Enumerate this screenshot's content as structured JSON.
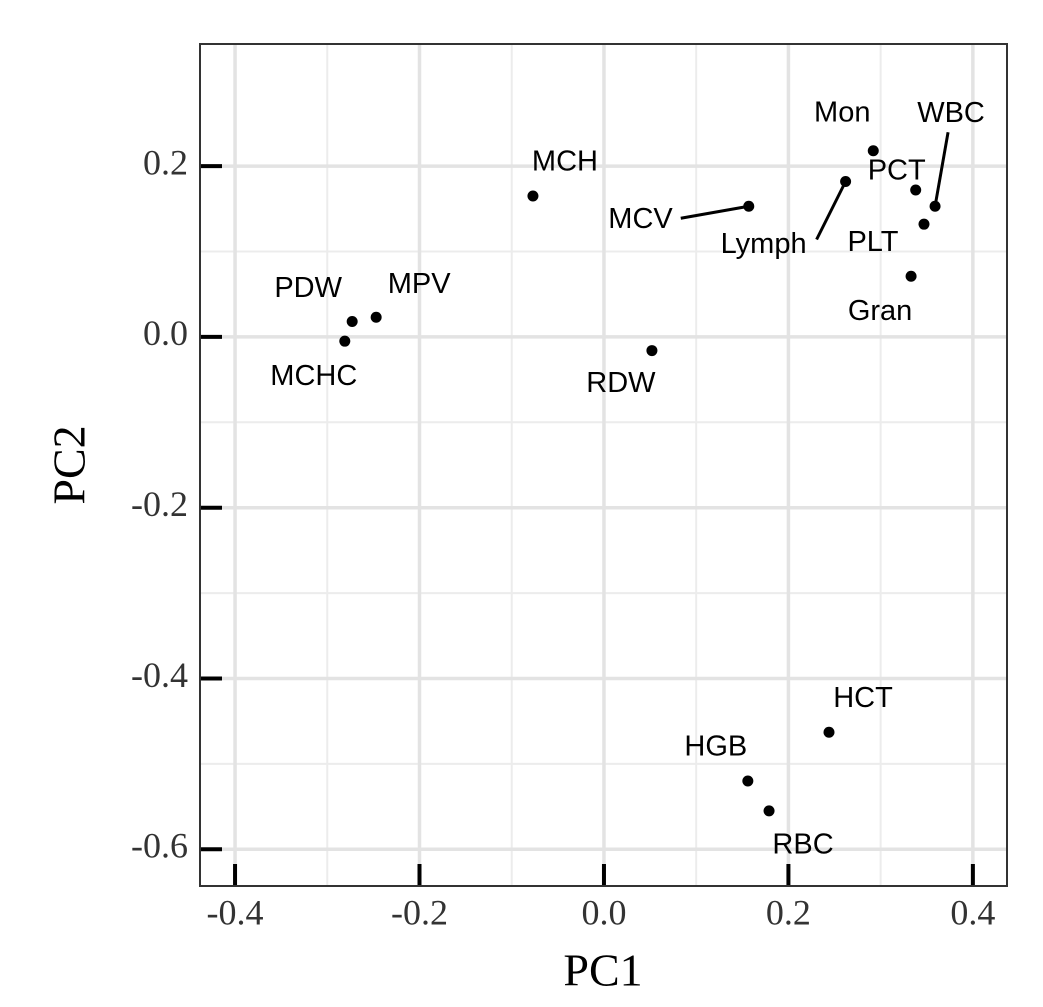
{
  "chart_data": {
    "type": "scatter",
    "x_label": "PC1",
    "y_label": "PC2",
    "labels": [
      "MCH",
      "MCV",
      "Mon",
      "Lymph",
      "PCT",
      "WBC",
      "PLT",
      "Gran",
      "PDW",
      "MPV",
      "MCHC",
      "RDW",
      "HCT",
      "HGB",
      "RBC"
    ],
    "x": [
      -0.077,
      0.157,
      0.292,
      0.262,
      0.338,
      0.359,
      0.347,
      0.333,
      -0.273,
      -0.247,
      -0.281,
      0.052,
      0.244,
      0.156,
      0.179
    ],
    "y": [
      0.165,
      0.153,
      0.218,
      0.182,
      0.172,
      0.153,
      0.132,
      0.071,
      0.018,
      0.023,
      -0.005,
      -0.016,
      -0.463,
      -0.52,
      -0.555
    ],
    "color": "#000000",
    "xlim": [
      -0.438,
      0.437
    ],
    "ylim": [
      -0.643,
      0.343
    ],
    "xticks": [
      -0.4,
      -0.2,
      {
        "value": 0,
        "label": "0.0"
      },
      0.2,
      0.4
    ],
    "yticks": [
      0.2,
      {
        "value": 0,
        "label": "0.0"
      },
      -0.2,
      -0.4,
      -0.6
    ],
    "grid": true
  }
}
